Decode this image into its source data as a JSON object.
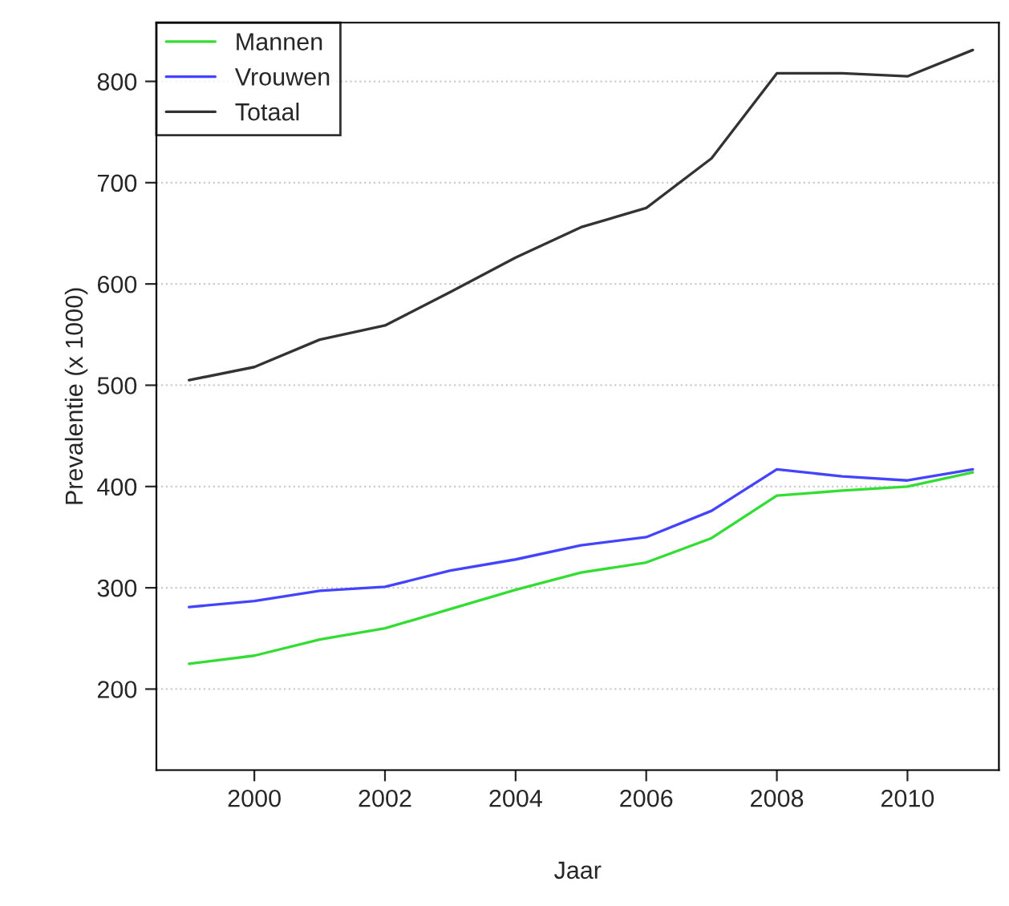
{
  "chart_data": {
    "type": "line",
    "xlabel": "Jaar",
    "ylabel": "Prevalentie (x 1000)",
    "x": [
      1999,
      2000,
      2001,
      2002,
      2003,
      2004,
      2005,
      2006,
      2007,
      2008,
      2009,
      2010,
      2011
    ],
    "series": [
      {
        "name": "Mannen",
        "color": "#33dd33",
        "values": [
          225,
          233,
          249,
          260,
          279,
          298,
          315,
          325,
          349,
          391,
          396,
          400,
          414
        ]
      },
      {
        "name": "Vrouwen",
        "color": "#4444ff",
        "values": [
          281,
          287,
          297,
          301,
          317,
          328,
          342,
          350,
          376,
          417,
          410,
          406,
          417
        ]
      },
      {
        "name": "Totaal",
        "color": "#333333",
        "values": [
          505,
          518,
          545,
          559,
          592,
          626,
          656,
          675,
          724,
          808,
          808,
          805,
          831
        ]
      }
    ],
    "xlim": [
      1998.5,
      2011.4
    ],
    "ylim": [
      120,
      858
    ],
    "xticks": [
      2000,
      2002,
      2004,
      2006,
      2008,
      2010
    ],
    "yticks": [
      200,
      300,
      400,
      500,
      600,
      700,
      800
    ],
    "grid": "y",
    "legend": "top left",
    "line_style": "solid",
    "marker": "none"
  }
}
